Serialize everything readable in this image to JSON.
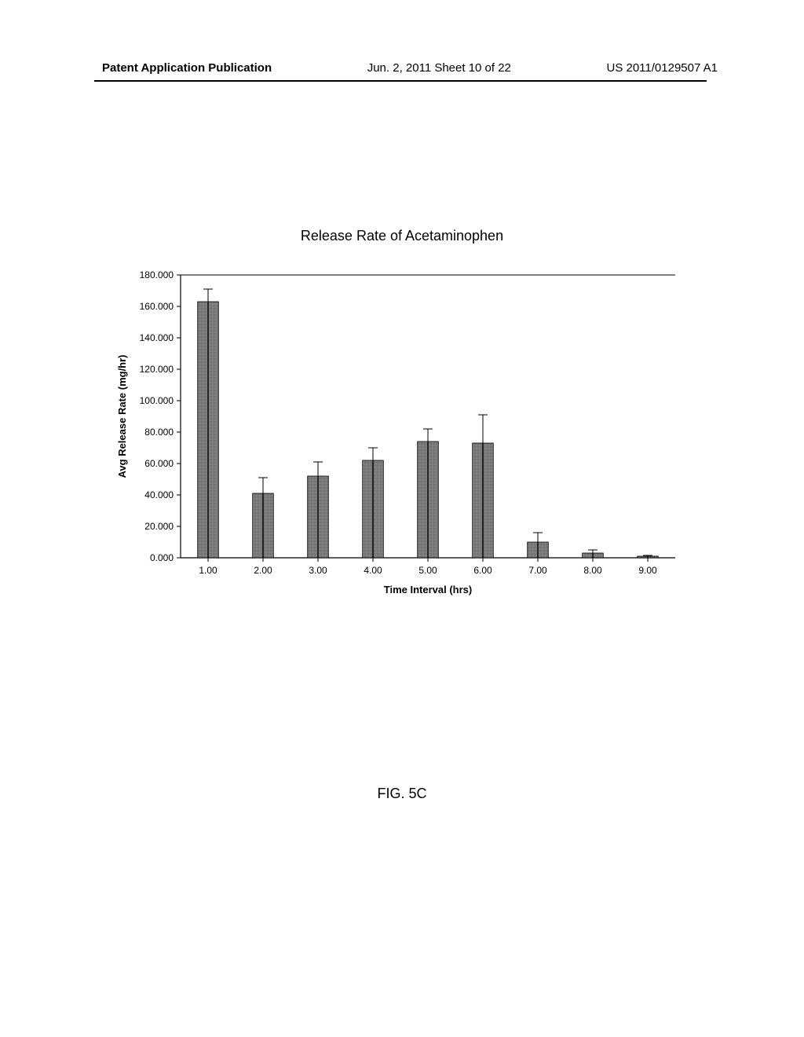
{
  "header": {
    "left": "Patent Application Publication",
    "center": "Jun. 2, 2011  Sheet 10 of 22",
    "right": "US 2011/0129507 A1"
  },
  "chart": {
    "title": "Release Rate of Acetaminophen",
    "type": "bar",
    "ylabel": "Avg Release Rate (mg/hr)",
    "xlabel": "Time Interval (hrs)",
    "ylim": [
      0,
      180
    ],
    "ytick_step": 20,
    "ytick_format": "0.000",
    "yticks": [
      "0.000",
      "20.000",
      "40.000",
      "60.000",
      "80.000",
      "100.000",
      "120.000",
      "140.000",
      "160.000",
      "180.000"
    ],
    "categories": [
      "1.00",
      "2.00",
      "3.00",
      "4.00",
      "5.00",
      "6.00",
      "7.00",
      "8.00",
      "9.00"
    ],
    "values": [
      163,
      41,
      52,
      62,
      74,
      73,
      10,
      3,
      1
    ],
    "errors": [
      8,
      10,
      9,
      8,
      8,
      18,
      6,
      2,
      0.5
    ],
    "bar_color": "#7a7a7a",
    "bar_border": "#000000",
    "bar_width_ratio": 0.38,
    "error_color": "#000000",
    "axis_color": "#000000",
    "background_color": "#ffffff",
    "tick_fontsize": 12,
    "label_fontsize": 13,
    "title_fontsize": 18
  },
  "figure_label": "FIG. 5C"
}
